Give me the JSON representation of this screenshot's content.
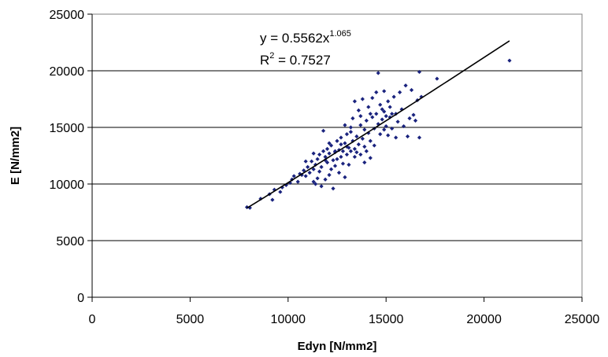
{
  "chart_data": {
    "type": "scatter",
    "title": "",
    "xlabel": "Edyn [N/mm2]",
    "ylabel": "E [N/mm2]",
    "xlim": [
      0,
      25000
    ],
    "ylim": [
      0,
      25000
    ],
    "x_ticks": [
      "0",
      "5000",
      "10000",
      "15000",
      "20000",
      "25000"
    ],
    "y_ticks": [
      "0",
      "5000",
      "10000",
      "15000",
      "20000",
      "25000"
    ],
    "grid": "horizontal",
    "point_color": "#1a237e",
    "trendline_color": "#000000",
    "trendline": {
      "type": "power",
      "a": 0.5562,
      "b": 1.065,
      "x_range": [
        7900,
        21300
      ],
      "equation_main": "y = 0.5562x",
      "equation_exp": "1.065",
      "r2_main": "R",
      "r2_sup": "2",
      "r2_value": " = 0.7527"
    },
    "points": [
      [
        7900,
        7950
      ],
      [
        8050,
        7900
      ],
      [
        8600,
        8700
      ],
      [
        9050,
        9100
      ],
      [
        9200,
        8600
      ],
      [
        9300,
        9500
      ],
      [
        9600,
        9300
      ],
      [
        9700,
        9700
      ],
      [
        9900,
        9900
      ],
      [
        10100,
        10100
      ],
      [
        10200,
        10400
      ],
      [
        10300,
        10700
      ],
      [
        10500,
        10200
      ],
      [
        10600,
        10900
      ],
      [
        10700,
        10800
      ],
      [
        10800,
        11200
      ],
      [
        10900,
        10700
      ],
      [
        11000,
        11500
      ],
      [
        11100,
        11000
      ],
      [
        11200,
        12000
      ],
      [
        11300,
        11300
      ],
      [
        11300,
        10200
      ],
      [
        11400,
        11700
      ],
      [
        11400,
        10000
      ],
      [
        11500,
        12200
      ],
      [
        11500,
        10500
      ],
      [
        11600,
        11100
      ],
      [
        11600,
        12600
      ],
      [
        11700,
        11500
      ],
      [
        11700,
        9800
      ],
      [
        11800,
        12900
      ],
      [
        11800,
        14700
      ],
      [
        11900,
        10400
      ],
      [
        11900,
        12400
      ],
      [
        12000,
        13100
      ],
      [
        12000,
        11900
      ],
      [
        12100,
        10800
      ],
      [
        12100,
        12700
      ],
      [
        12200,
        11300
      ],
      [
        12200,
        13400
      ],
      [
        12300,
        12100
      ],
      [
        12300,
        9600
      ],
      [
        12400,
        12800
      ],
      [
        12400,
        11600
      ],
      [
        12500,
        13800
      ],
      [
        12500,
        12200
      ],
      [
        12600,
        11000
      ],
      [
        12600,
        13000
      ],
      [
        12700,
        12400
      ],
      [
        12700,
        14100
      ],
      [
        12800,
        11800
      ],
      [
        12800,
        12900
      ],
      [
        12900,
        13600
      ],
      [
        12900,
        10600
      ],
      [
        13000,
        12600
      ],
      [
        13000,
        14400
      ],
      [
        13100,
        13200
      ],
      [
        13100,
        11700
      ],
      [
        13200,
        15000
      ],
      [
        13200,
        12900
      ],
      [
        13300,
        13800
      ],
      [
        13300,
        15800
      ],
      [
        13400,
        12400
      ],
      [
        13400,
        17300
      ],
      [
        13500,
        14200
      ],
      [
        13500,
        12800
      ],
      [
        13600,
        16500
      ],
      [
        13600,
        13500
      ],
      [
        13700,
        12600
      ],
      [
        13700,
        15200
      ],
      [
        13800,
        14000
      ],
      [
        13800,
        17500
      ],
      [
        13900,
        13300
      ],
      [
        13900,
        11900
      ],
      [
        14000,
        15600
      ],
      [
        14000,
        12900
      ],
      [
        14100,
        14500
      ],
      [
        14100,
        16800
      ],
      [
        14200,
        13800
      ],
      [
        14200,
        12300
      ],
      [
        14300,
        15900
      ],
      [
        14300,
        17600
      ],
      [
        14400,
        14900
      ],
      [
        14400,
        13400
      ],
      [
        14500,
        16200
      ],
      [
        14500,
        18100
      ],
      [
        14600,
        15300
      ],
      [
        14600,
        19800
      ],
      [
        14700,
        14400
      ],
      [
        14700,
        17000
      ],
      [
        14800,
        15700
      ],
      [
        14800,
        16600
      ],
      [
        14900,
        14800
      ],
      [
        14900,
        18200
      ],
      [
        15000,
        16000
      ],
      [
        15000,
        15100
      ],
      [
        15100,
        17300
      ],
      [
        15100,
        14300
      ],
      [
        15200,
        15900
      ],
      [
        15200,
        16800
      ],
      [
        15300,
        14900
      ],
      [
        15400,
        17700
      ],
      [
        15500,
        16200
      ],
      [
        15500,
        14100
      ],
      [
        15600,
        15500
      ],
      [
        15700,
        18100
      ],
      [
        15800,
        16600
      ],
      [
        15900,
        15100
      ],
      [
        16000,
        18700
      ],
      [
        16100,
        14200
      ],
      [
        16200,
        15800
      ],
      [
        16300,
        18300
      ],
      [
        16400,
        16100
      ],
      [
        16500,
        15600
      ],
      [
        16600,
        17400
      ],
      [
        16700,
        14100
      ],
      [
        16700,
        19900
      ],
      [
        16800,
        17700
      ],
      [
        17600,
        19300
      ],
      [
        21300,
        20900
      ],
      [
        13200,
        14600
      ],
      [
        12900,
        15200
      ],
      [
        13700,
        16000
      ],
      [
        14200,
        16200
      ],
      [
        11900,
        12100
      ],
      [
        12400,
        12900
      ],
      [
        13000,
        13300
      ],
      [
        13400,
        13100
      ],
      [
        14900,
        16400
      ],
      [
        15300,
        16200
      ],
      [
        12100,
        13600
      ],
      [
        11300,
        12700
      ],
      [
        10900,
        12000
      ],
      [
        12700,
        13500
      ],
      [
        13900,
        14800
      ]
    ]
  }
}
